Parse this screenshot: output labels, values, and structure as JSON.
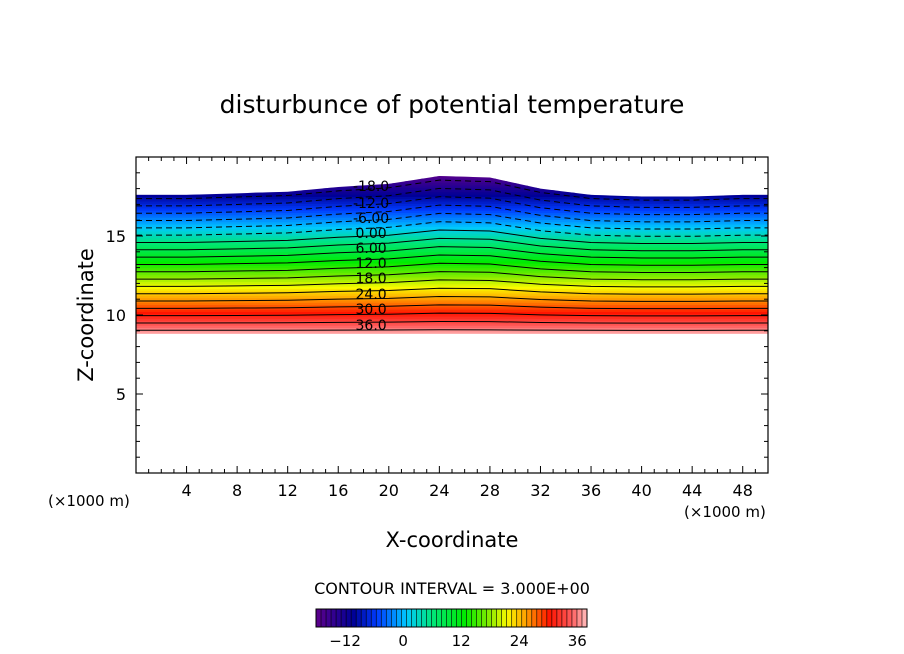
{
  "chart_data": {
    "type": "contour",
    "title": "disturbunce of potential temperature",
    "xlabel": "X-coordinate",
    "ylabel": "Z-coordinate",
    "x_unit": "(×1000 m)",
    "y_unit": "(×1000 m)",
    "xlim": [
      0,
      50
    ],
    "ylim": [
      0,
      20
    ],
    "x_ticks": [
      "4",
      "8",
      "12",
      "16",
      "20",
      "24",
      "28",
      "32",
      "36",
      "40",
      "44",
      "48"
    ],
    "y_ticks": [
      "5",
      "10",
      "15"
    ],
    "top_boundary": {
      "x": [
        0,
        4,
        8,
        12,
        16,
        20,
        24,
        28,
        32,
        36,
        40,
        44,
        48,
        50
      ],
      "z": [
        17.6,
        17.6,
        17.7,
        17.8,
        18.1,
        18.3,
        18.8,
        18.7,
        18.0,
        17.6,
        17.5,
        17.5,
        17.6,
        17.6
      ]
    },
    "bottom_z": 8.8,
    "contour_interval": "CONTOUR INTERVAL = 3.000E+00",
    "contour_labels": [
      "-18.0",
      "-12.0",
      "-6.00",
      "0.00",
      "6.00",
      "12.0",
      "18.0",
      "24.0",
      "30.0",
      "36.0"
    ],
    "colorbar": {
      "min": -18,
      "max": 38,
      "ticks": [
        "-12",
        "0",
        "12",
        "24",
        "36"
      ]
    }
  }
}
